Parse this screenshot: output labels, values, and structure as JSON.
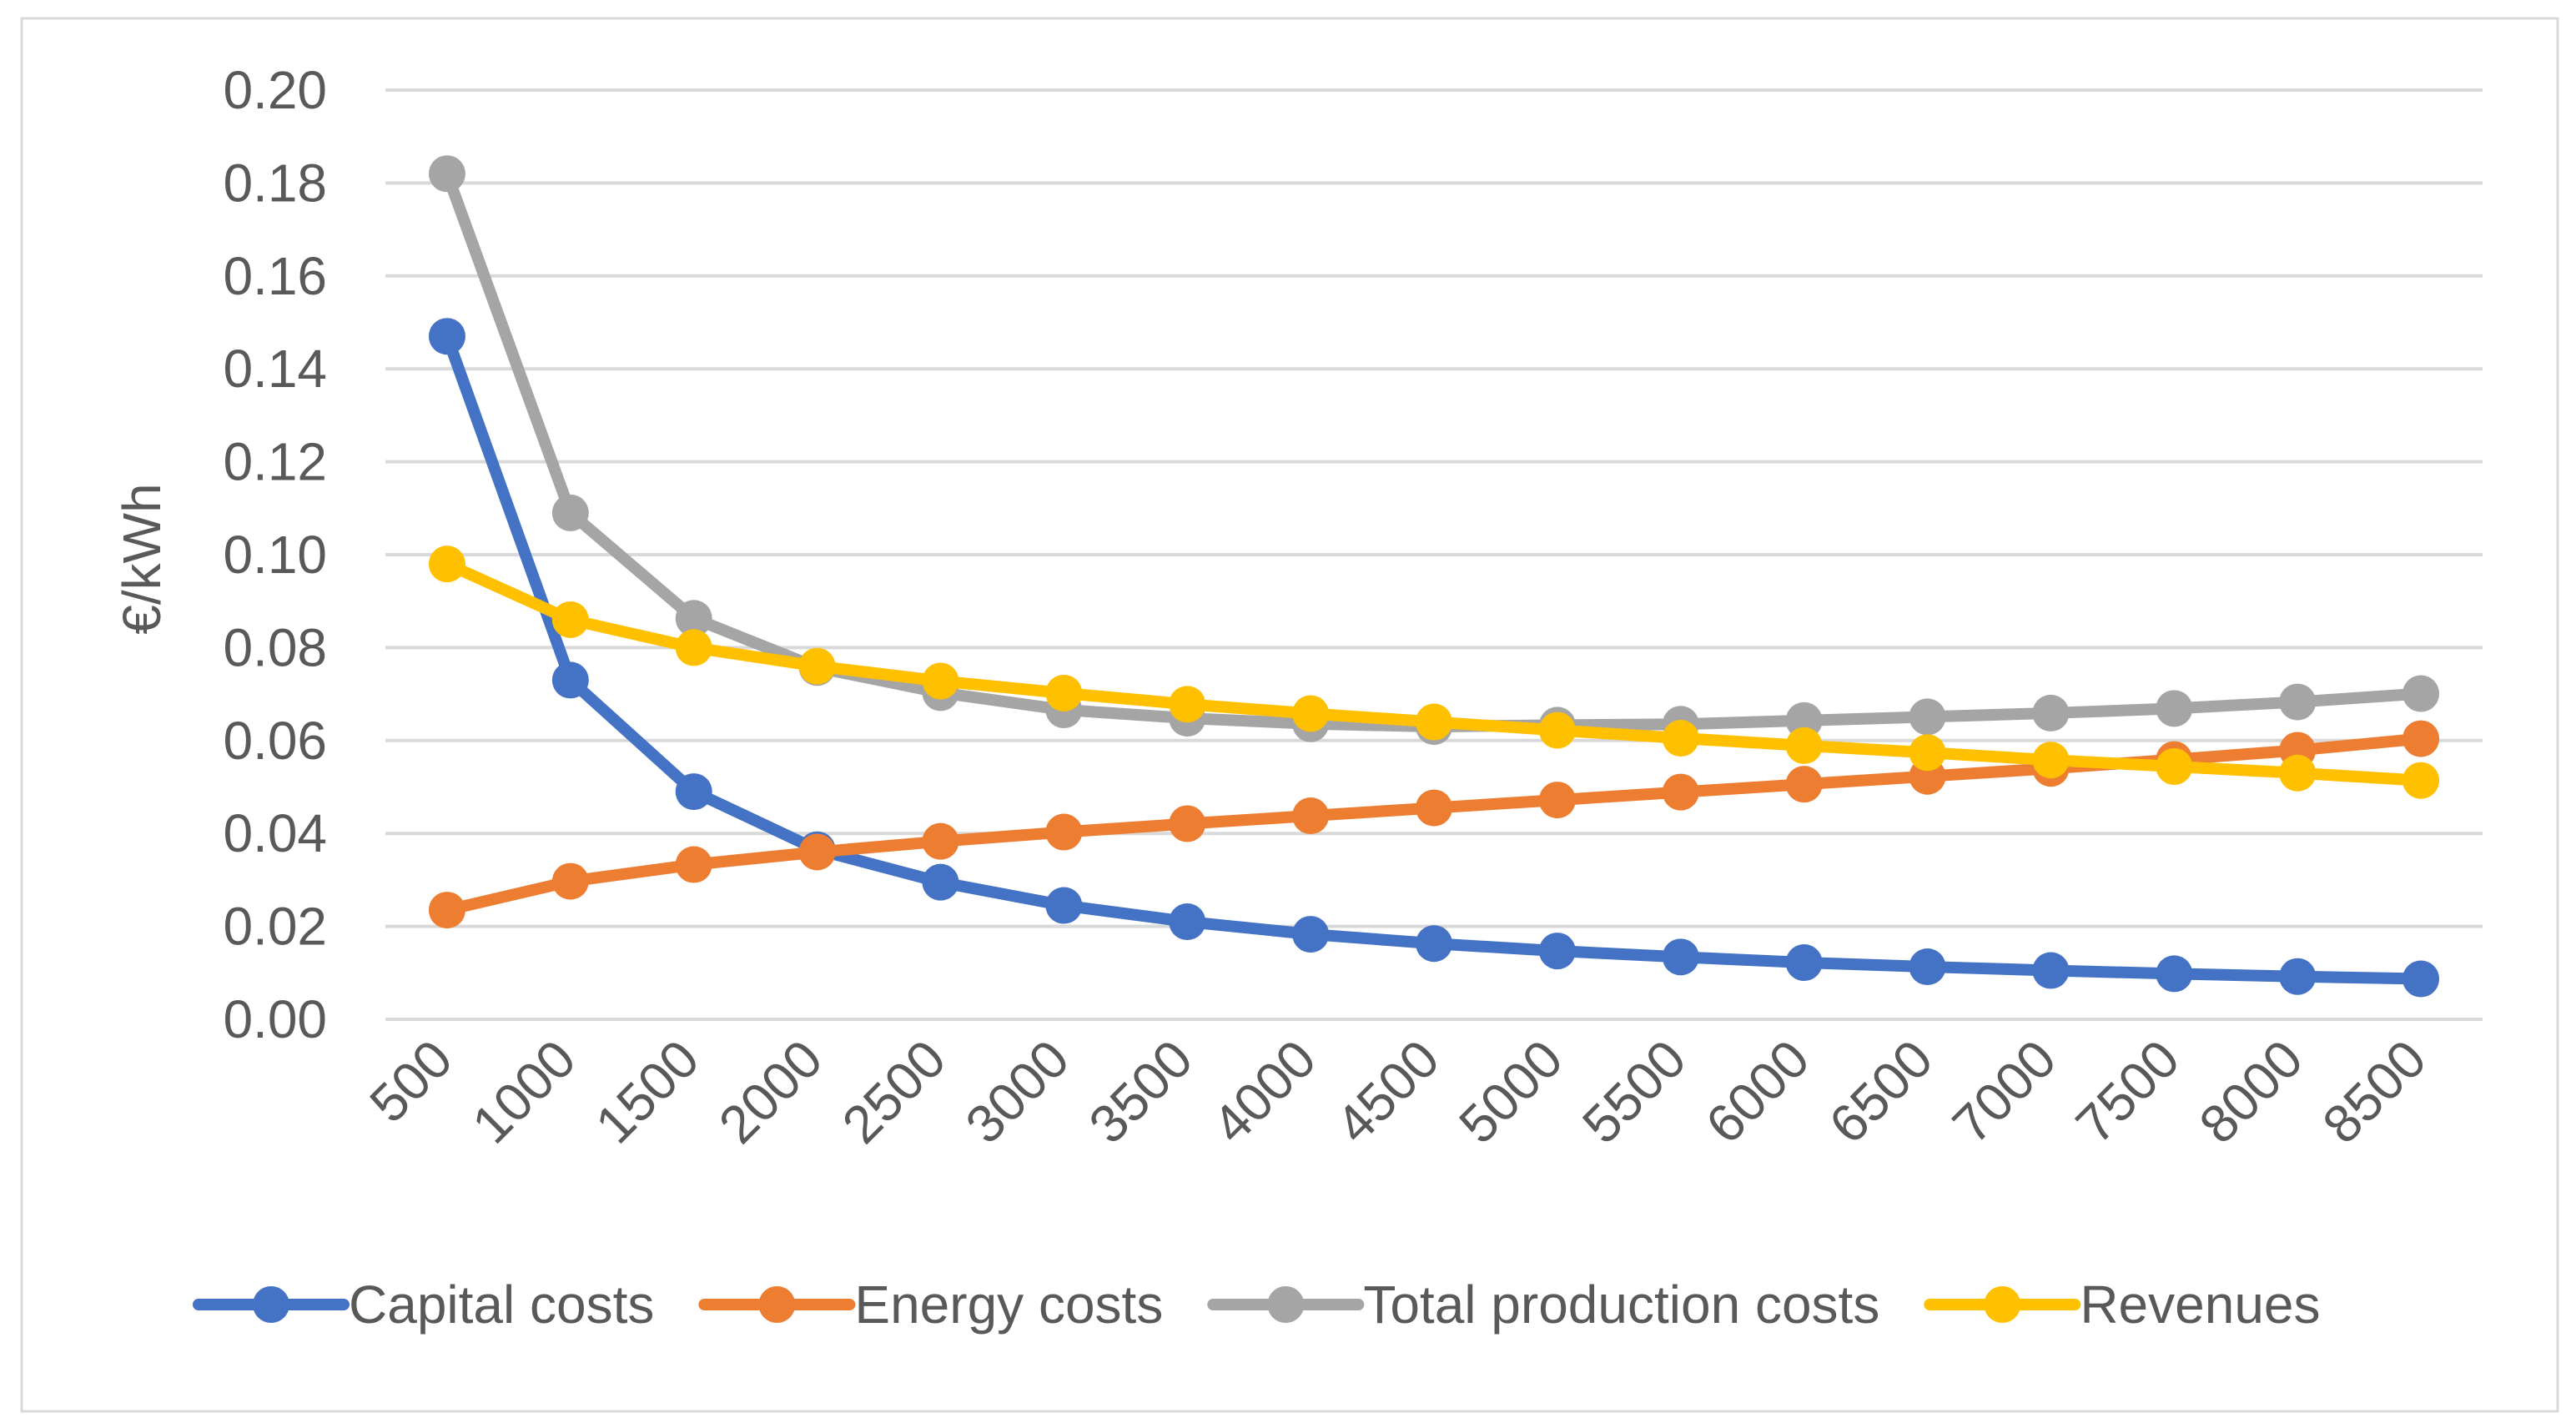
{
  "chart_data": {
    "type": "line",
    "title": "",
    "xlabel": "",
    "ylabel": "€/kWh",
    "ylim": [
      0,
      0.2
    ],
    "yticks": [
      "0.00",
      "0.02",
      "0.04",
      "0.06",
      "0.08",
      "0.10",
      "0.12",
      "0.14",
      "0.16",
      "0.18",
      "0.20"
    ],
    "grid": true,
    "legend_position": "bottom",
    "categories": [
      "500",
      "1000",
      "1500",
      "2000",
      "2500",
      "3000",
      "3500",
      "4000",
      "4500",
      "5000",
      "5500",
      "6000",
      "6500",
      "7000",
      "7500",
      "8000",
      "8500"
    ],
    "series": [
      {
        "name": "Capital costs",
        "color": "#4472c4",
        "values": [
          0.147,
          0.073,
          0.049,
          0.0365,
          0.0295,
          0.0245,
          0.021,
          0.0183,
          0.0163,
          0.0147,
          0.0134,
          0.0122,
          0.0113,
          0.0105,
          0.0098,
          0.0092,
          0.0087
        ]
      },
      {
        "name": "Energy costs",
        "color": "#ed7d31",
        "values": [
          0.0235,
          0.0297,
          0.0333,
          0.036,
          0.0383,
          0.0403,
          0.0421,
          0.0438,
          0.0455,
          0.0472,
          0.0489,
          0.0506,
          0.0523,
          0.054,
          0.0559,
          0.0579,
          0.0604
        ]
      },
      {
        "name": "Total production costs",
        "color": "#a5a5a5",
        "values": [
          0.182,
          0.109,
          0.0863,
          0.0757,
          0.0703,
          0.0666,
          0.0648,
          0.0636,
          0.063,
          0.0633,
          0.0635,
          0.0643,
          0.0651,
          0.0659,
          0.0669,
          0.0683,
          0.0701
        ]
      },
      {
        "name": "Revenues",
        "color": "#ffc000",
        "values": [
          0.098,
          0.086,
          0.08,
          0.076,
          0.0728,
          0.0702,
          0.0678,
          0.0658,
          0.064,
          0.0622,
          0.0605,
          0.0589,
          0.0574,
          0.0558,
          0.0544,
          0.053,
          0.0514
        ]
      }
    ]
  }
}
